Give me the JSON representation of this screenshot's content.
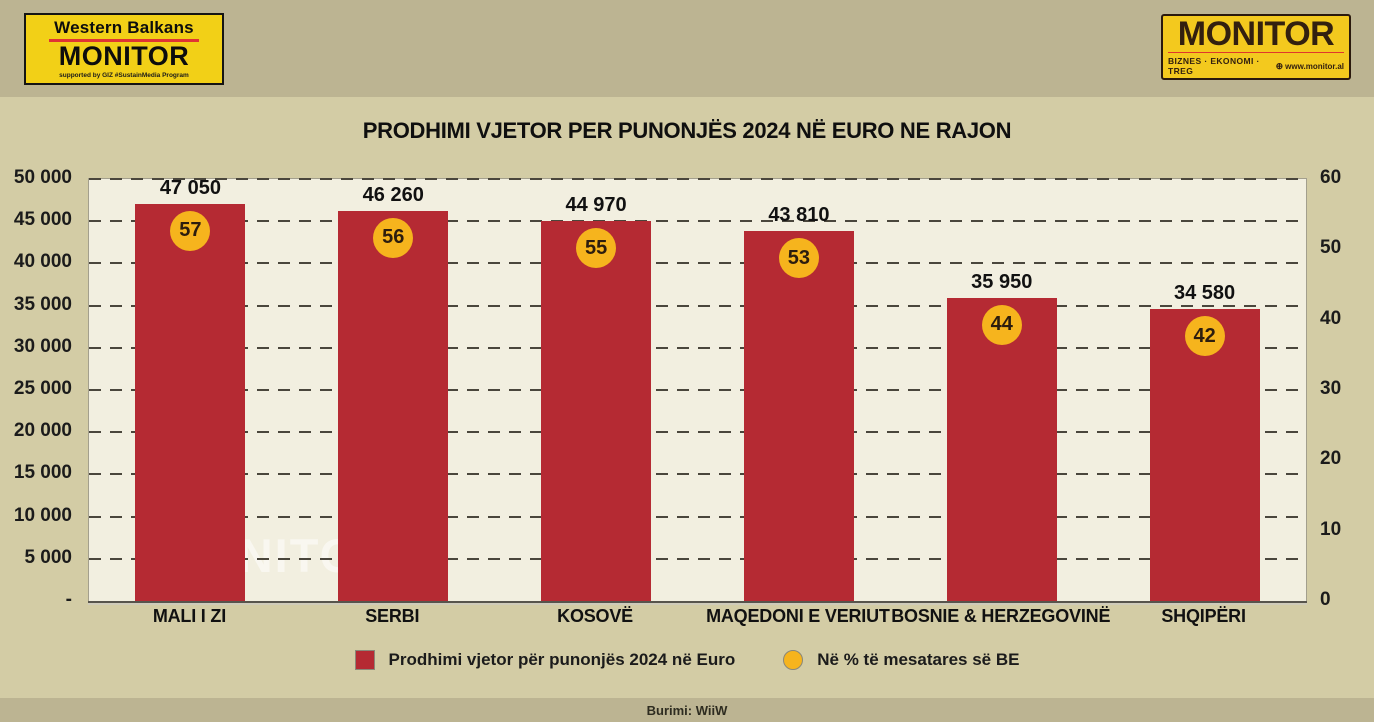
{
  "header": {
    "left_logo": {
      "line1": "Western Balkans",
      "line2": "MONITOR",
      "line3": "supported by GIZ #SustainMedia Program"
    },
    "right_logo": {
      "title": "MONITOR",
      "subtitle": "BIZNES · EKONOMI · TREG",
      "url": "www.monitor.al"
    }
  },
  "chart_data": {
    "type": "bar",
    "title": "PRODHIMI VJETOR PER PUNONJËS 2024 NË EURO NE RAJON",
    "categories": [
      "MALI I ZI",
      "SERBI",
      "KOSOVË",
      "MAQEDONI E VERIUT",
      "BOSNIE & HERZEGOVINË",
      "SHQIPËRI"
    ],
    "series": [
      {
        "name": "Prodhimi vjetor për punonjës 2024 në Euro",
        "type": "bar",
        "axis": "left",
        "color": "#b52a33",
        "values": [
          47050,
          46260,
          44970,
          43810,
          35950,
          34580
        ],
        "value_labels": [
          "47 050",
          "46 260",
          "44 970",
          "43 810",
          "35 950",
          "34 580"
        ]
      },
      {
        "name": "Në % të mesatares së BE",
        "type": "point",
        "axis": "right",
        "color": "#f6b41d",
        "values": [
          57,
          56,
          55,
          53,
          44,
          42
        ]
      }
    ],
    "left_axis": {
      "min": 0,
      "max": 50000,
      "tick_labels": [
        "50 000",
        "45 000",
        "40 000",
        "35 000",
        "30 000",
        "25 000",
        "20 000",
        "15 000",
        "10 000",
        "5 000",
        "-"
      ]
    },
    "right_axis": {
      "min": 0,
      "max": 60,
      "tick_labels": [
        "60",
        "50",
        "40",
        "30",
        "20",
        "10",
        "0"
      ]
    },
    "grid": "horizontal dashed",
    "legend_position": "bottom"
  },
  "legend": [
    {
      "shape": "square",
      "color": "#b52a33",
      "label": "Prodhimi vjetor për punonjës 2024 në Euro"
    },
    {
      "shape": "circle",
      "color": "#f6b41d",
      "label": "Në % të mesatares së BE"
    }
  ],
  "watermark": "MONITOR.al",
  "footer": {
    "source": "Burimi: WiiW"
  },
  "colors": {
    "page_background": "#d3cca5",
    "band_background": "#bcb492",
    "plot_background": "#f2efe0",
    "bar": "#b52a33",
    "marker": "#f6b41d",
    "logo_yellow": "#f2d017",
    "logo_red": "#e0372c",
    "text": "#111111"
  }
}
